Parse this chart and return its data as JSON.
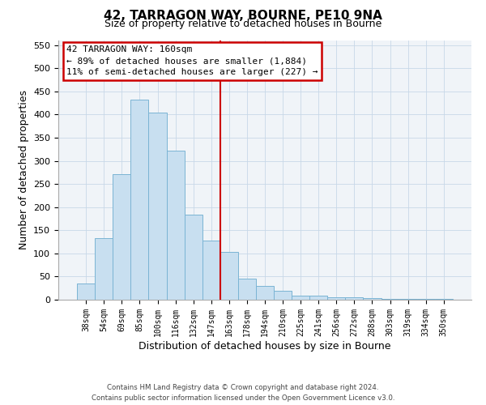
{
  "title": "42, TARRAGON WAY, BOURNE, PE10 9NA",
  "subtitle": "Size of property relative to detached houses in Bourne",
  "xlabel": "Distribution of detached houses by size in Bourne",
  "ylabel": "Number of detached properties",
  "bar_labels": [
    "38sqm",
    "54sqm",
    "69sqm",
    "85sqm",
    "100sqm",
    "116sqm",
    "132sqm",
    "147sqm",
    "163sqm",
    "178sqm",
    "194sqm",
    "210sqm",
    "225sqm",
    "241sqm",
    "256sqm",
    "272sqm",
    "288sqm",
    "303sqm",
    "319sqm",
    "334sqm",
    "350sqm"
  ],
  "bar_values": [
    35,
    133,
    272,
    432,
    405,
    322,
    183,
    128,
    103,
    46,
    30,
    20,
    8,
    8,
    5,
    5,
    3,
    2,
    2,
    2,
    2
  ],
  "bar_color": "#c8dff0",
  "bar_edge_color": "#7ab4d4",
  "vline_index": 8,
  "vline_color": "#cc0000",
  "annotation_title": "42 TARRAGON WAY: 160sqm",
  "annotation_line1": "← 89% of detached houses are smaller (1,884)",
  "annotation_line2": "11% of semi-detached houses are larger (227) →",
  "annotation_box_edge": "#cc0000",
  "annotation_box_face": "#ffffff",
  "ylim": [
    0,
    560
  ],
  "yticks": [
    0,
    50,
    100,
    150,
    200,
    250,
    300,
    350,
    400,
    450,
    500,
    550
  ],
  "footer1": "Contains HM Land Registry data © Crown copyright and database right 2024.",
  "footer2": "Contains public sector information licensed under the Open Government Licence v3.0.",
  "bg_color": "#f0f4f8"
}
